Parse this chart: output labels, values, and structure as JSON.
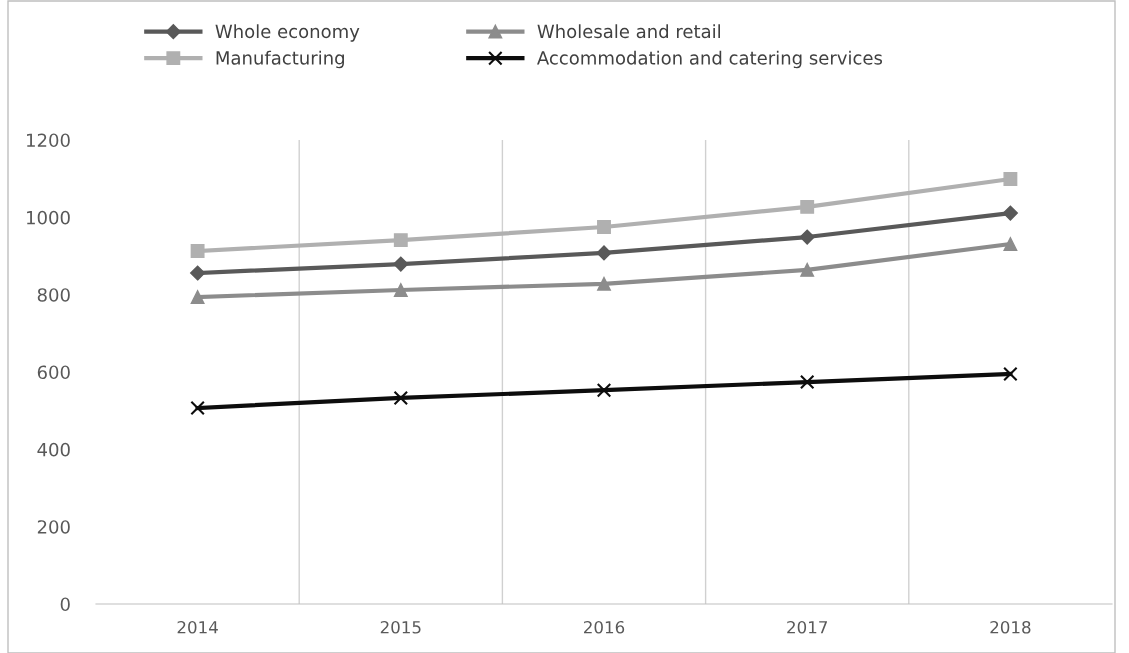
{
  "chart_data": {
    "type": "line",
    "categories": [
      "2014",
      "2015",
      "2016",
      "2017",
      "2018"
    ],
    "series": [
      {
        "name": "Whole economy",
        "color": "#595959",
        "marker": "diamond",
        "values": [
          856,
          879,
          908,
          949,
          1011
        ]
      },
      {
        "name": "Manufacturing",
        "color": "#b0b0b0",
        "marker": "square",
        "values": [
          913,
          941,
          975,
          1027,
          1099
        ]
      },
      {
        "name": "Wholesale and retail",
        "color": "#8c8c8c",
        "marker": "triangle",
        "values": [
          794,
          812,
          828,
          864,
          931
        ]
      },
      {
        "name": "Accommodation and catering services",
        "color": "#0d0d0d",
        "marker": "cross",
        "values": [
          507,
          533,
          553,
          574,
          595
        ]
      }
    ],
    "ylim": [
      0,
      1200
    ],
    "yticks": [
      0,
      200,
      400,
      600,
      800,
      1000,
      1200
    ],
    "grid": "x",
    "legend": "top",
    "line_style": "solid"
  }
}
